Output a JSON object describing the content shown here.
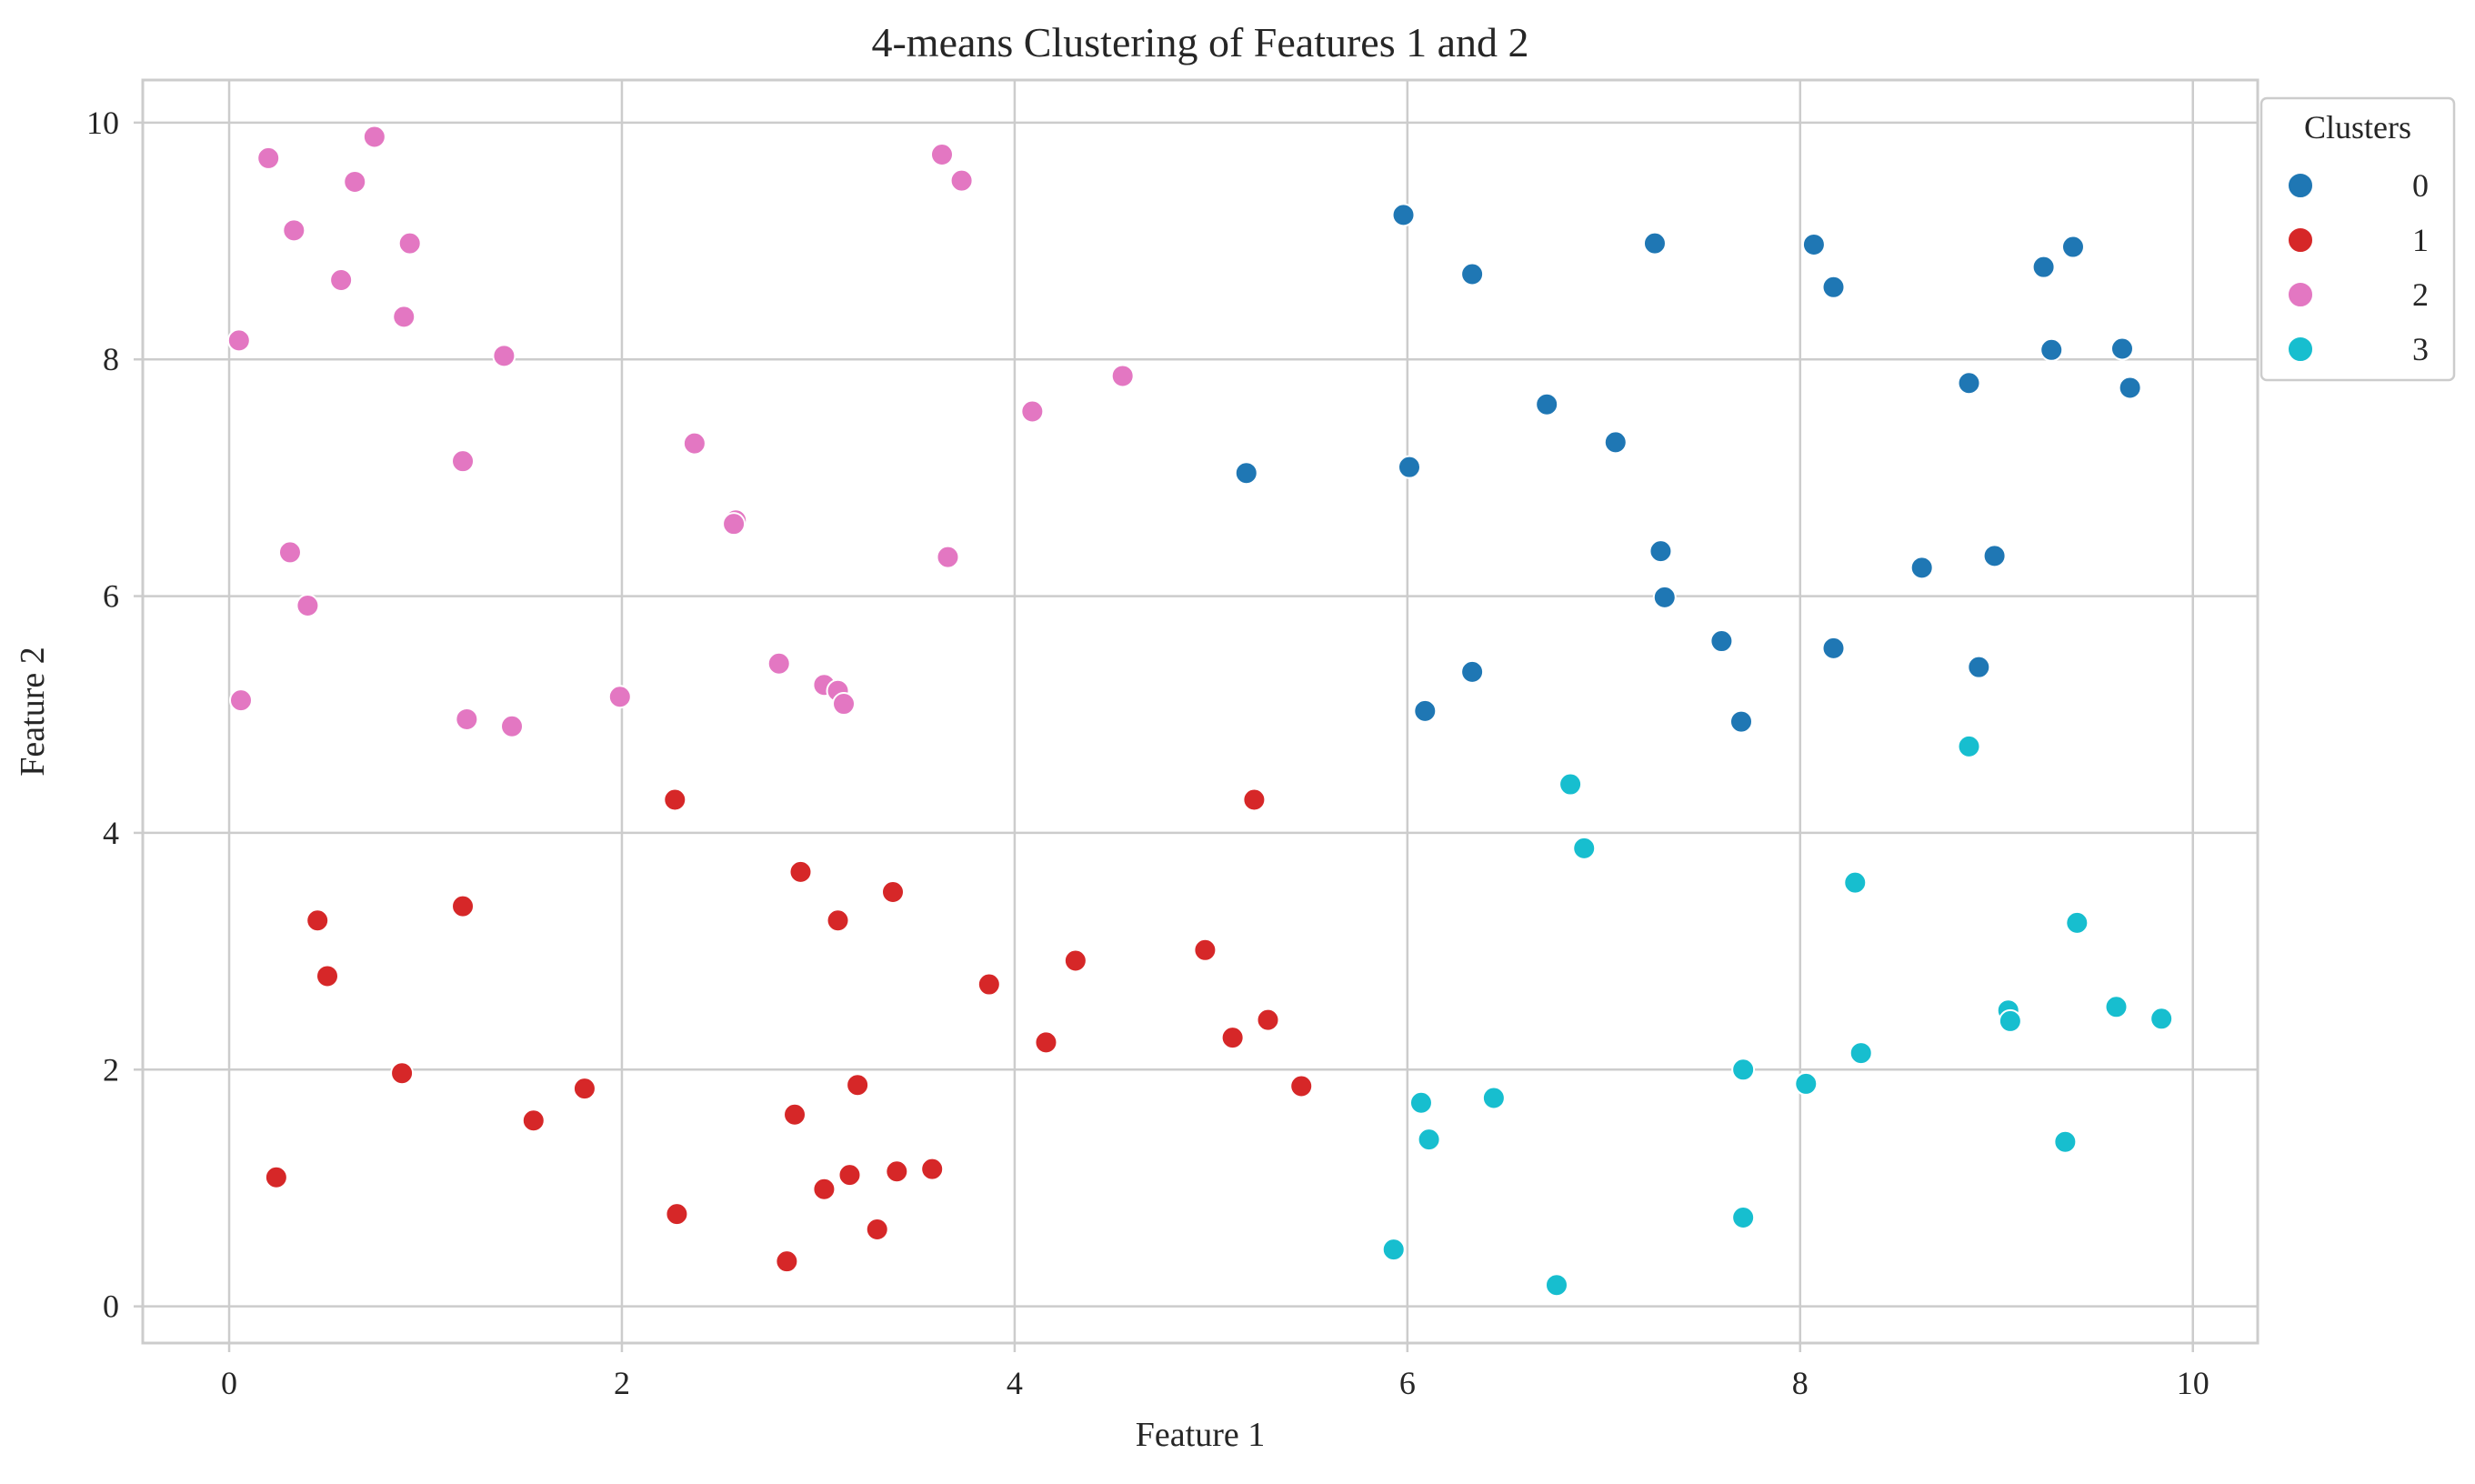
{
  "chart_data": {
    "type": "scatter",
    "title": "4-means Clustering of Features 1 and 2",
    "xlabel": "Feature 1",
    "ylabel": "Feature 2",
    "xlim": [
      -0.44,
      10.33
    ],
    "ylim": [
      -0.31,
      10.36
    ],
    "xticks": [
      0,
      2,
      4,
      6,
      8,
      10
    ],
    "yticks": [
      0,
      2,
      4,
      6,
      8,
      10
    ],
    "grid": true,
    "legend": {
      "title": "Clusters",
      "placement": "outside-top-right"
    },
    "series": [
      {
        "name": "0",
        "color": "#1f77b4",
        "points": [
          [
            5.98,
            9.22
          ],
          [
            6.33,
            8.72
          ],
          [
            7.26,
            8.98
          ],
          [
            8.07,
            8.97
          ],
          [
            8.17,
            8.61
          ],
          [
            9.24,
            8.78
          ],
          [
            9.39,
            8.95
          ],
          [
            9.28,
            8.08
          ],
          [
            9.64,
            8.09
          ],
          [
            9.68,
            7.76
          ],
          [
            8.86,
            7.8
          ],
          [
            6.71,
            7.62
          ],
          [
            7.06,
            7.3
          ],
          [
            6.01,
            7.09
          ],
          [
            5.18,
            7.04
          ],
          [
            7.29,
            6.38
          ],
          [
            7.31,
            5.99
          ],
          [
            8.62,
            6.24
          ],
          [
            8.99,
            6.34
          ],
          [
            7.6,
            5.62
          ],
          [
            8.17,
            5.56
          ],
          [
            8.91,
            5.4
          ],
          [
            6.33,
            5.36
          ],
          [
            6.09,
            5.03
          ],
          [
            7.7,
            4.94
          ]
        ]
      },
      {
        "name": "1",
        "color": "#d62728",
        "points": [
          [
            2.27,
            4.28
          ],
          [
            5.22,
            4.28
          ],
          [
            2.91,
            3.67
          ],
          [
            3.38,
            3.5
          ],
          [
            1.19,
            3.38
          ],
          [
            0.45,
            3.26
          ],
          [
            3.1,
            3.26
          ],
          [
            4.97,
            3.01
          ],
          [
            4.31,
            2.92
          ],
          [
            0.5,
            2.79
          ],
          [
            3.87,
            2.72
          ],
          [
            5.29,
            2.42
          ],
          [
            5.11,
            2.27
          ],
          [
            4.16,
            2.23
          ],
          [
            0.88,
            1.97
          ],
          [
            1.81,
            1.84
          ],
          [
            3.2,
            1.87
          ],
          [
            5.46,
            1.86
          ],
          [
            1.55,
            1.57
          ],
          [
            2.88,
            1.62
          ],
          [
            0.24,
            1.09
          ],
          [
            3.16,
            1.11
          ],
          [
            3.4,
            1.14
          ],
          [
            3.58,
            1.16
          ],
          [
            3.03,
            0.99
          ],
          [
            2.28,
            0.78
          ],
          [
            3.3,
            0.65
          ],
          [
            2.84,
            0.38
          ]
        ]
      },
      {
        "name": "2",
        "color": "#e377c2",
        "points": [
          [
            0.2,
            9.7
          ],
          [
            0.74,
            9.88
          ],
          [
            0.64,
            9.5
          ],
          [
            3.63,
            9.73
          ],
          [
            3.73,
            9.51
          ],
          [
            0.33,
            9.09
          ],
          [
            0.92,
            8.98
          ],
          [
            0.57,
            8.67
          ],
          [
            0.89,
            8.36
          ],
          [
            0.05,
            8.16
          ],
          [
            1.4,
            8.03
          ],
          [
            4.55,
            7.86
          ],
          [
            4.09,
            7.56
          ],
          [
            2.37,
            7.29
          ],
          [
            1.19,
            7.14
          ],
          [
            2.58,
            6.64
          ],
          [
            2.57,
            6.61
          ],
          [
            0.31,
            6.37
          ],
          [
            3.66,
            6.33
          ],
          [
            0.4,
            5.92
          ],
          [
            2.8,
            5.43
          ],
          [
            3.03,
            5.25
          ],
          [
            3.1,
            5.2
          ],
          [
            3.13,
            5.09
          ],
          [
            0.06,
            5.12
          ],
          [
            1.99,
            5.15
          ],
          [
            1.21,
            4.96
          ],
          [
            1.44,
            4.9
          ]
        ]
      },
      {
        "name": "3",
        "color": "#17becf",
        "points": [
          [
            8.86,
            4.73
          ],
          [
            6.83,
            4.41
          ],
          [
            6.9,
            3.87
          ],
          [
            8.28,
            3.58
          ],
          [
            9.41,
            3.24
          ],
          [
            9.06,
            2.5
          ],
          [
            9.61,
            2.53
          ],
          [
            9.07,
            2.41
          ],
          [
            9.84,
            2.43
          ],
          [
            8.31,
            2.14
          ],
          [
            7.71,
            2.0
          ],
          [
            8.03,
            1.88
          ],
          [
            6.44,
            1.76
          ],
          [
            6.07,
            1.72
          ],
          [
            6.11,
            1.41
          ],
          [
            9.35,
            1.39
          ],
          [
            7.71,
            0.75
          ],
          [
            5.93,
            0.48
          ],
          [
            6.76,
            0.18
          ]
        ]
      }
    ]
  }
}
